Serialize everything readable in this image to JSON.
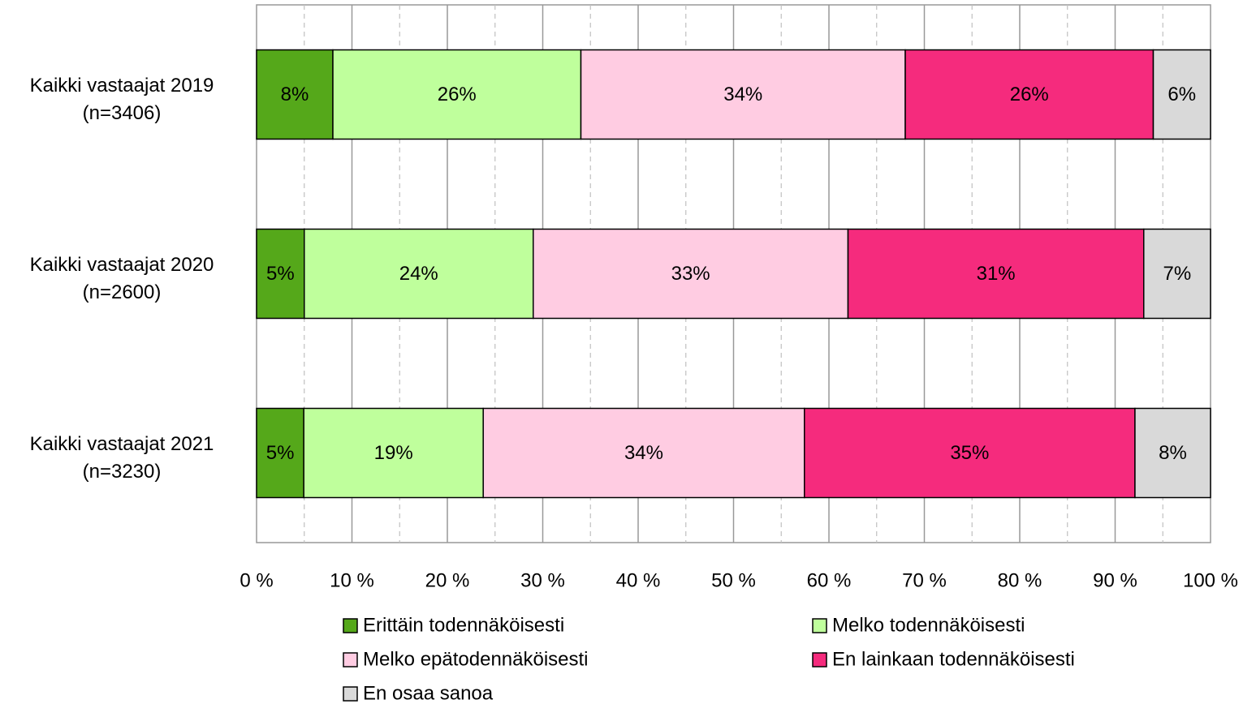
{
  "chart_data": {
    "type": "bar",
    "orientation": "horizontal",
    "stacked": "percent",
    "title": "",
    "xlabel": "",
    "ylabel": "",
    "xlim": [
      0,
      100
    ],
    "x_ticks": [
      "0 %",
      "10 %",
      "20 %",
      "30 %",
      "40 %",
      "50 %",
      "60 %",
      "70 %",
      "80 %",
      "90 %",
      "100 %"
    ],
    "grid": "vertical major solid, minor dashed",
    "legend_position": "bottom",
    "categories": [
      {
        "line1": "Kaikki vastaajat 2019",
        "line2": "(n=3406)"
      },
      {
        "line1": "Kaikki vastaajat 2020",
        "line2": "(n=2600)"
      },
      {
        "line1": "Kaikki vastaajat 2021",
        "line2": "(n=3230)"
      }
    ],
    "series": [
      {
        "name": "Erittäin todennäköisesti",
        "color": "#55a81a",
        "values": [
          8,
          5,
          5
        ],
        "labels": [
          "8%",
          "5%",
          "5%"
        ]
      },
      {
        "name": "Melko todennäköisesti",
        "color": "#bfff9c",
        "values": [
          26,
          24,
          19
        ],
        "labels": [
          "26%",
          "24%",
          "19%"
        ]
      },
      {
        "name": "Melko epätodennäköisesti",
        "color": "#ffcce2",
        "values": [
          34,
          33,
          34
        ],
        "labels": [
          "34%",
          "33%",
          "34%"
        ]
      },
      {
        "name": "En lainkaan todennäköisesti",
        "color": "#f52b7d",
        "values": [
          26,
          31,
          35
        ],
        "labels": [
          "26%",
          "31%",
          "35%"
        ]
      },
      {
        "name": "En osaa sanoa",
        "color": "#d9d9d9",
        "values": [
          6,
          7,
          8
        ],
        "labels": [
          "6%",
          "7%",
          "8%"
        ]
      }
    ]
  }
}
